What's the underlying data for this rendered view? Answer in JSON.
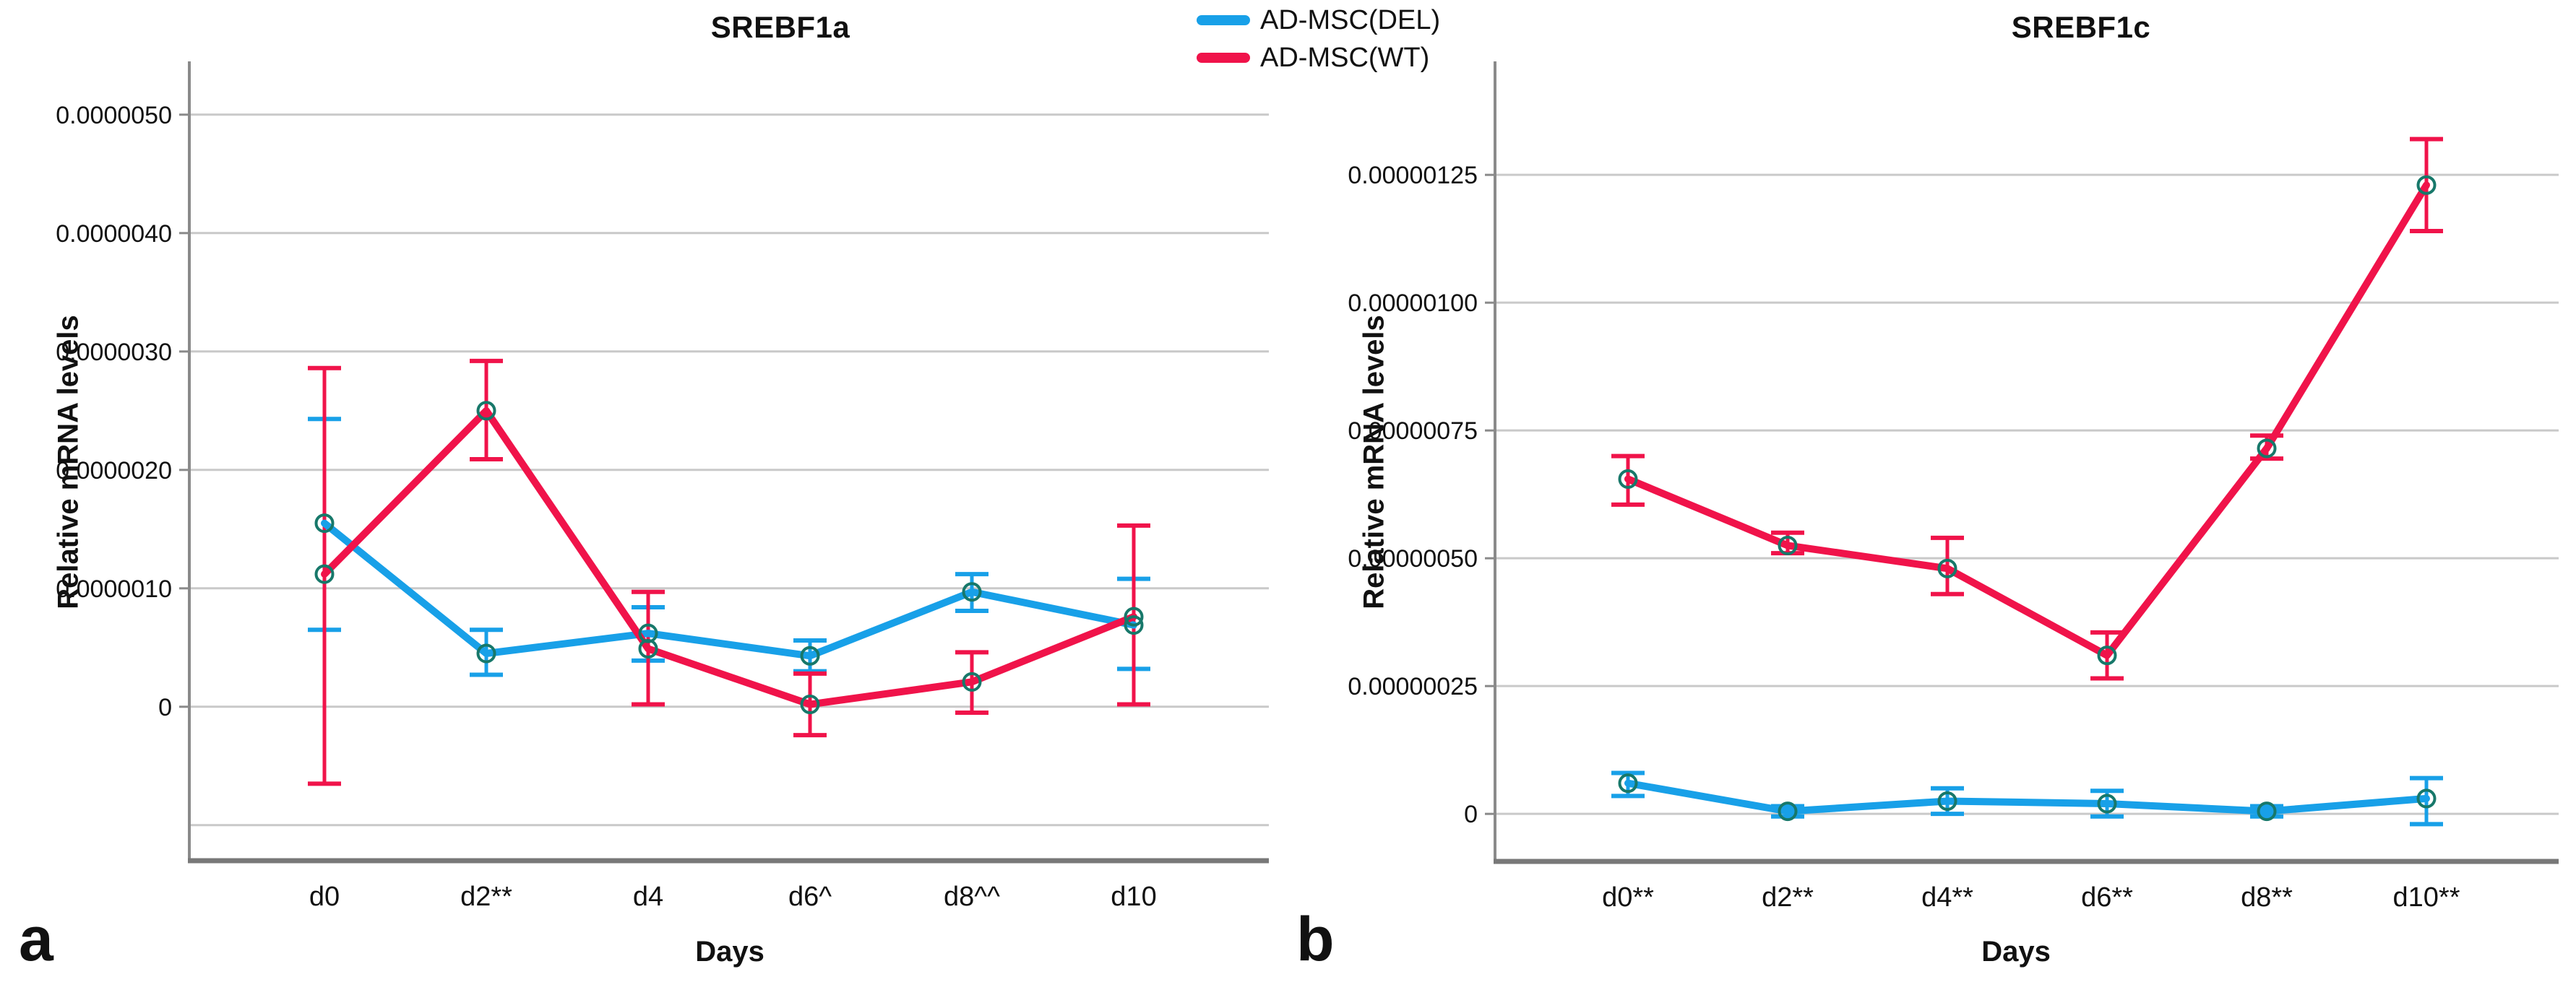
{
  "figure": {
    "background": "#ffffff",
    "panel_letters": [
      "a",
      "b"
    ]
  },
  "legend": {
    "items": [
      {
        "label": "AD-MSC(DEL)",
        "color": "#18A0E8"
      },
      {
        "label": "AD-MSC(WT)",
        "color": "#F0134A"
      }
    ]
  },
  "style": {
    "grid_color": "#C9C9C9",
    "axis_color": "#8A8A8A",
    "baseline_color": "#787878",
    "marker_ring_color": "#17786A",
    "text_color": "#111111"
  },
  "chart_data": [
    {
      "type": "line",
      "panel": "a",
      "title": "SREBF1a",
      "xlabel": "Days",
      "ylabel": "Relative mRNA levels",
      "categories": [
        "d0",
        "d2**",
        "d4",
        "d6^",
        "d8^^",
        "d10"
      ],
      "unit_scale": "1e-6",
      "ylim": [
        -1.3,
        5.45
      ],
      "grid": true,
      "legend_position": "top-center",
      "yticks": [
        {
          "label": "0",
          "value": 0
        },
        {
          "label": "0.0000010",
          "value": 1
        },
        {
          "label": "0.0000020",
          "value": 2
        },
        {
          "label": "0.0000030",
          "value": 3
        },
        {
          "label": "0.0000040",
          "value": 4
        },
        {
          "label": "0.0000050",
          "value": 5
        }
      ],
      "extra_gridlines": [
        -1
      ],
      "series": [
        {
          "name": "AD-MSC(DEL)",
          "color": "#18A0E8",
          "means": [
            1.55,
            0.45,
            0.62,
            0.43,
            0.97,
            0.69
          ],
          "err_lo": [
            0.65,
            0.27,
            0.39,
            0.3,
            0.81,
            0.32
          ],
          "err_hi": [
            2.43,
            0.65,
            0.84,
            0.56,
            1.12,
            1.08
          ]
        },
        {
          "name": "AD-MSC(WT)",
          "color": "#F0134A",
          "means": [
            1.12,
            2.5,
            0.49,
            0.02,
            0.21,
            0.76
          ],
          "err_lo": [
            -0.65,
            2.09,
            0.02,
            -0.24,
            -0.05,
            0.02
          ],
          "err_hi": [
            2.86,
            2.92,
            0.97,
            0.28,
            0.46,
            1.53
          ]
        }
      ]
    },
    {
      "type": "line",
      "panel": "b",
      "title": "SREBF1c",
      "xlabel": "Days",
      "ylabel": "Relative mRNA levels",
      "categories": [
        "d0**",
        "d2**",
        "d4**",
        "d6**",
        "d8**",
        "d10**"
      ],
      "unit_scale": "1e-6",
      "ylim": [
        -0.093,
        1.472
      ],
      "grid": true,
      "legend_position": "top-center",
      "yticks": [
        {
          "label": "0",
          "value": 0
        },
        {
          "label": "0.00000025",
          "value": 0.25
        },
        {
          "label": "0.00000050",
          "value": 0.5
        },
        {
          "label": "0.00000075",
          "value": 0.75
        },
        {
          "label": "0.00000100",
          "value": 1.0
        },
        {
          "label": "0.00000125",
          "value": 1.25
        }
      ],
      "extra_gridlines": [],
      "series": [
        {
          "name": "AD-MSC(DEL)",
          "color": "#18A0E8",
          "means": [
            0.06,
            0.005,
            0.025,
            0.02,
            0.005,
            0.03
          ],
          "err_lo": [
            0.035,
            -0.005,
            0.0,
            -0.005,
            -0.005,
            -0.02
          ],
          "err_hi": [
            0.08,
            0.015,
            0.05,
            0.045,
            0.015,
            0.07
          ]
        },
        {
          "name": "AD-MSC(WT)",
          "color": "#F0134A",
          "means": [
            0.655,
            0.525,
            0.48,
            0.31,
            0.715,
            1.23
          ],
          "err_lo": [
            0.605,
            0.51,
            0.43,
            0.265,
            0.695,
            1.14
          ],
          "err_hi": [
            0.7,
            0.55,
            0.54,
            0.355,
            0.74,
            1.32
          ]
        }
      ]
    }
  ]
}
